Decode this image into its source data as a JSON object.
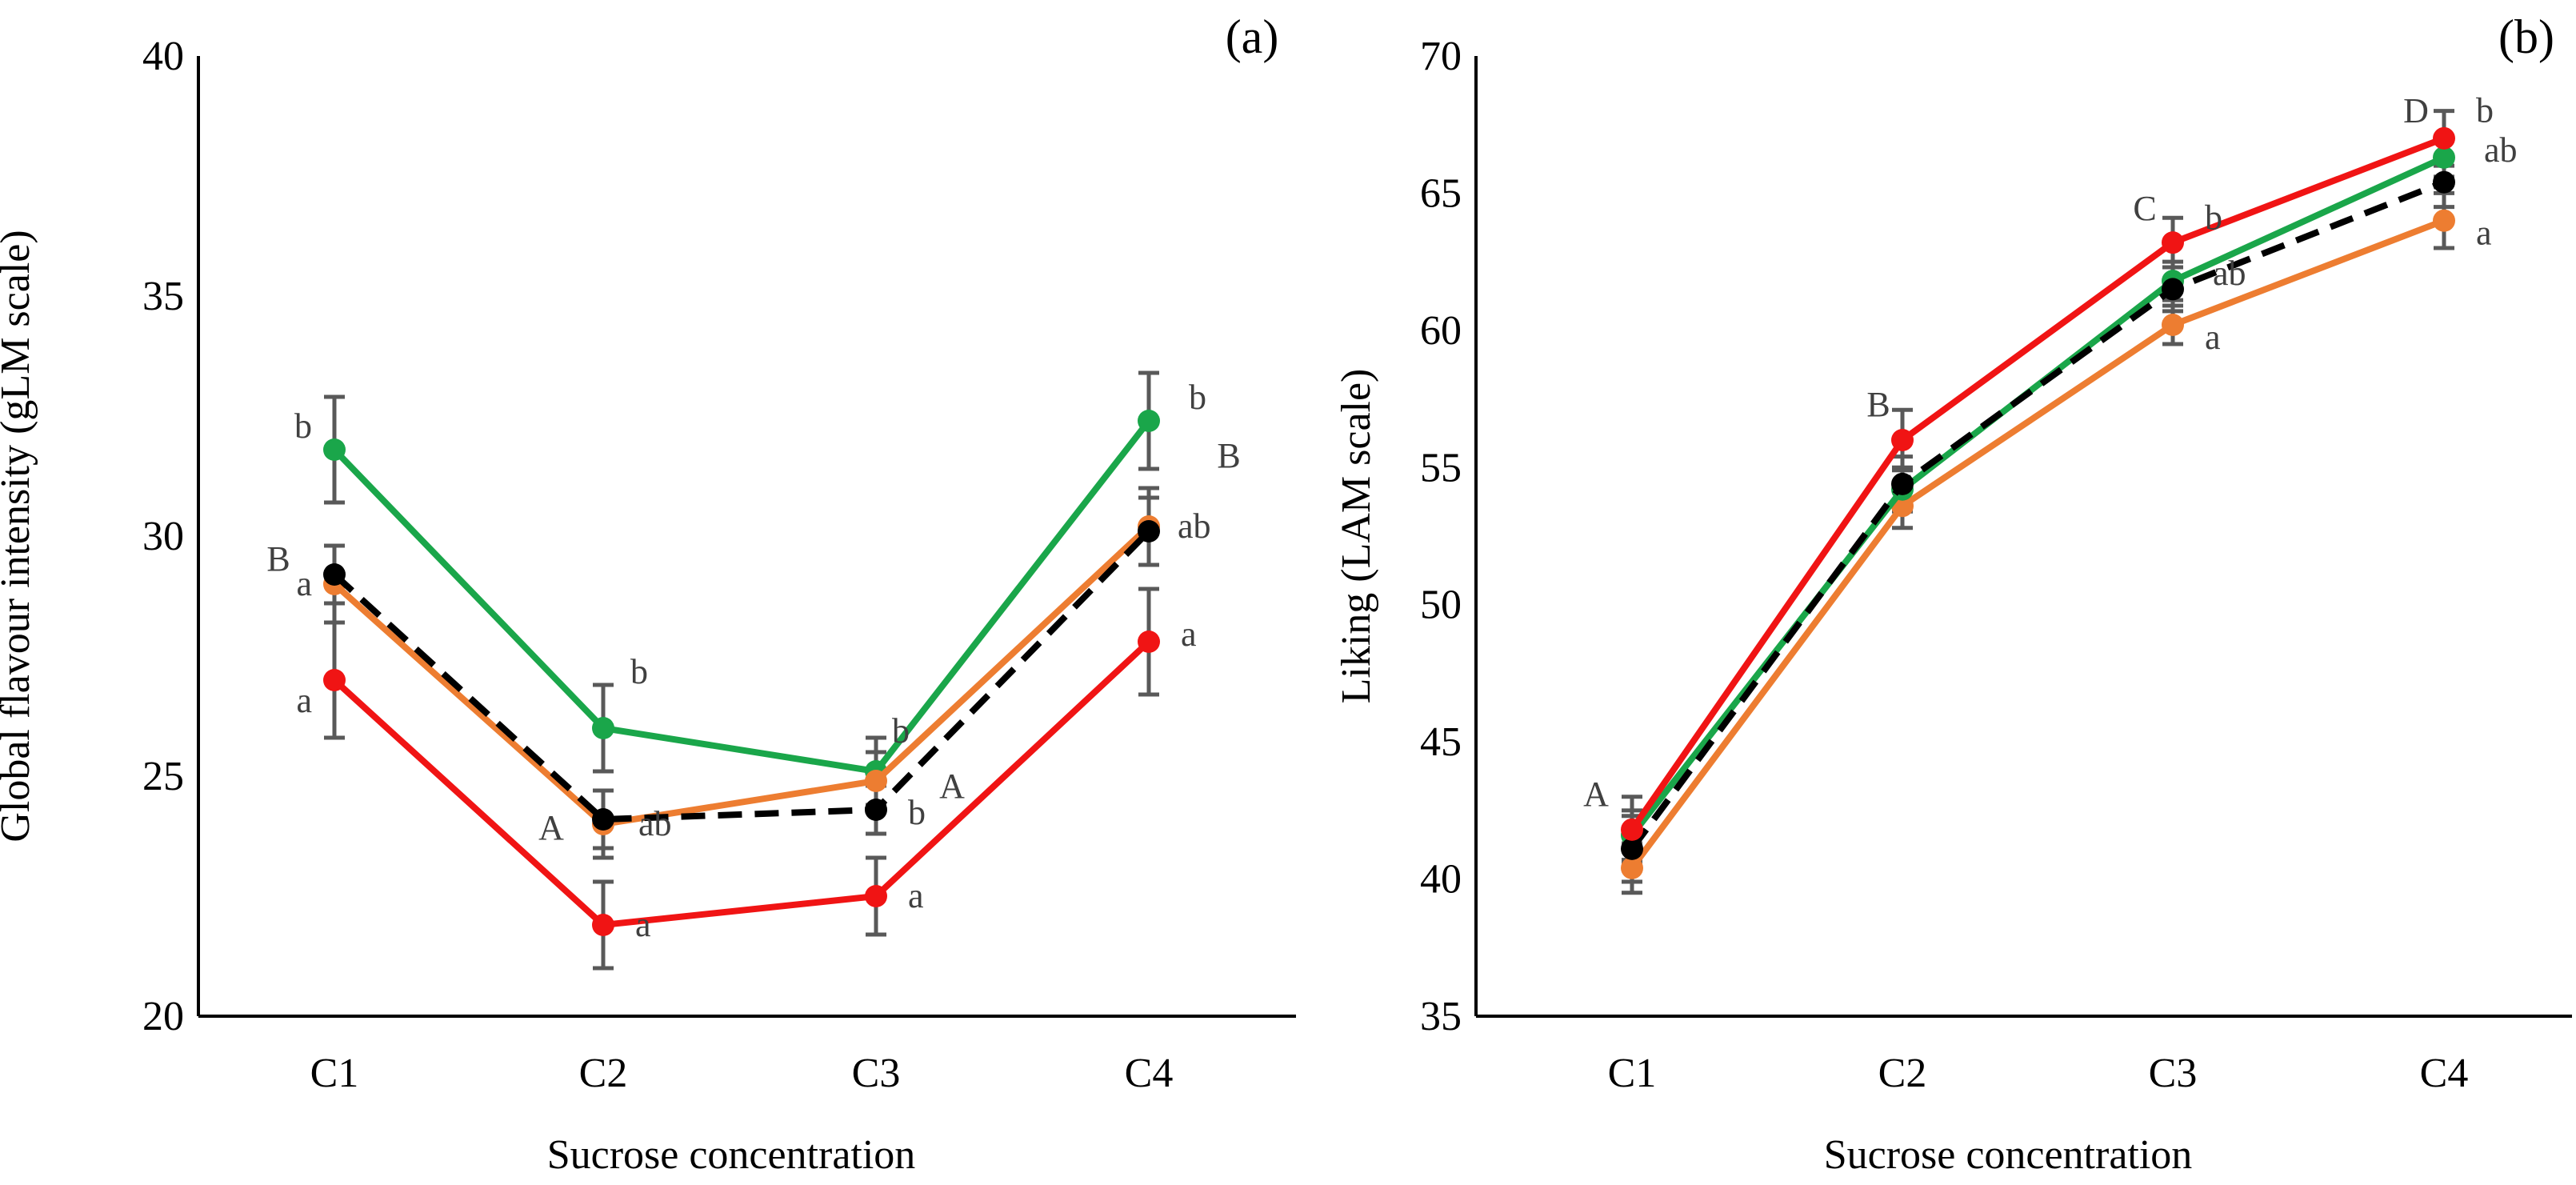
{
  "chart_data": [
    {
      "type": "line",
      "panel_label": "(a)",
      "categories": [
        "C1",
        "C2",
        "C3",
        "C4"
      ],
      "xlabel": "Sucrose concentration",
      "ylabel": "Global  flavour  intensity  (gLM scale)",
      "ylim": [
        20,
        40
      ],
      "yticks": [
        20,
        25,
        30,
        35,
        40
      ],
      "grid": false,
      "series": [
        {
          "name": "green",
          "color": "#1aa64a",
          "dash": false,
          "values": [
            31.8,
            26.0,
            25.1,
            32.4
          ],
          "errors": [
            1.1,
            0.9,
            0.7,
            1.0
          ],
          "letters": [
            "b",
            "b",
            "b",
            "b"
          ]
        },
        {
          "name": "orange",
          "color": "#ed7d31",
          "dash": false,
          "values": [
            29.0,
            24.0,
            24.9,
            30.2
          ],
          "errors": [
            0.8,
            0.7,
            0.6,
            0.8
          ],
          "letters": [
            "a",
            "ab",
            "",
            "ab"
          ]
        },
        {
          "name": "black",
          "color": "#000000",
          "dash": true,
          "values": [
            29.2,
            24.1,
            24.3,
            30.1
          ],
          "errors": [
            0.6,
            0.6,
            0.5,
            0.7
          ],
          "letters": [
            "",
            "",
            "b",
            ""
          ]
        },
        {
          "name": "red",
          "color": "#f01414",
          "dash": false,
          "values": [
            27.0,
            21.9,
            22.5,
            27.8
          ],
          "errors": [
            1.2,
            0.9,
            0.8,
            1.1
          ],
          "letters": [
            "a",
            "a",
            "a",
            "a"
          ]
        }
      ],
      "group_letters": [
        {
          "category": "C1",
          "text": "B"
        },
        {
          "category": "C2",
          "text": "A"
        },
        {
          "category": "C3",
          "text": "A"
        },
        {
          "category": "C4",
          "text": "B"
        }
      ]
    },
    {
      "type": "line",
      "panel_label": "(b)",
      "categories": [
        "C1",
        "C2",
        "C3",
        "C4"
      ],
      "xlabel": "Sucrose concentration",
      "ylabel": "Liking  (LAM scale)",
      "ylim": [
        35,
        70
      ],
      "yticks": [
        35,
        40,
        45,
        50,
        55,
        60,
        65,
        70
      ],
      "grid": false,
      "series": [
        {
          "name": "orange",
          "color": "#ed7d31",
          "dash": false,
          "values": [
            40.4,
            53.6,
            60.2,
            64.0
          ],
          "errors": [
            0.9,
            0.8,
            0.7,
            1.0
          ],
          "letters": [
            "",
            "",
            "a",
            "a"
          ]
        },
        {
          "name": "green",
          "color": "#1aa64a",
          "dash": false,
          "values": [
            41.6,
            54.2,
            61.8,
            66.3
          ],
          "errors": [
            0.9,
            0.8,
            0.7,
            0.7
          ],
          "letters": [
            "",
            "",
            "ab",
            "ab"
          ]
        },
        {
          "name": "black",
          "color": "#000000",
          "dash": true,
          "values": [
            41.1,
            54.4,
            61.5,
            65.4
          ],
          "errors": [
            1.2,
            1.0,
            0.8,
            0.9
          ],
          "letters": [
            "",
            "",
            "",
            ""
          ]
        },
        {
          "name": "red",
          "color": "#f01414",
          "dash": false,
          "values": [
            41.8,
            56.0,
            63.2,
            67.0
          ],
          "errors": [
            1.2,
            1.1,
            0.9,
            1.0
          ],
          "letters": [
            "",
            "",
            "b",
            "b"
          ]
        }
      ],
      "group_letters": [
        {
          "category": "C1",
          "text": "A"
        },
        {
          "category": "C2",
          "text": "B"
        },
        {
          "category": "C3",
          "text": "C"
        },
        {
          "category": "C4",
          "text": "D"
        }
      ]
    }
  ]
}
